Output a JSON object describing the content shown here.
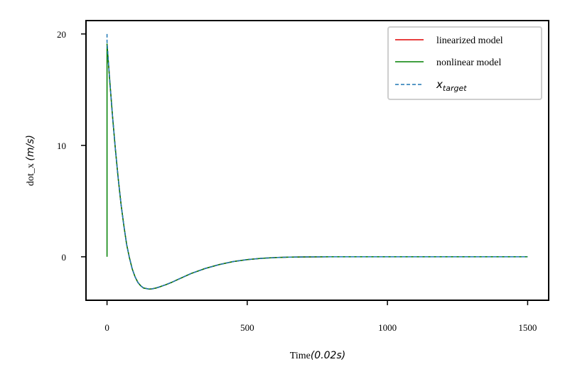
{
  "chart_data": {
    "type": "line",
    "xlabel": {
      "text": "Time",
      "unit": "(0.02s)"
    },
    "ylabel": {
      "text": "dot_x ",
      "unit": "(m/s)"
    },
    "xlim": [
      -75,
      1575
    ],
    "ylim": [
      -3.9,
      21.2
    ],
    "xticks": [
      0,
      500,
      1000,
      1500
    ],
    "yticks": [
      0,
      10,
      20
    ],
    "grid": false,
    "legend_position": "top-right",
    "series": [
      {
        "name": "linearized model",
        "color": "#e00000",
        "style": "solid",
        "x": [
          0,
          10,
          20,
          30,
          40,
          50,
          60,
          70,
          80,
          90,
          100,
          110,
          120,
          130,
          140,
          150,
          160,
          175,
          190,
          210,
          230,
          260,
          300,
          350,
          400,
          450,
          500,
          550,
          600,
          650,
          700,
          800,
          900,
          1000,
          1200,
          1500
        ],
        "y": [
          19.1,
          15.7,
          12.5,
          9.6,
          7.0,
          4.7,
          2.8,
          1.1,
          -0.1,
          -1.1,
          -1.8,
          -2.3,
          -2.6,
          -2.8,
          -2.85,
          -2.9,
          -2.88,
          -2.8,
          -2.68,
          -2.5,
          -2.3,
          -1.95,
          -1.5,
          -1.05,
          -0.7,
          -0.43,
          -0.25,
          -0.14,
          -0.07,
          -0.03,
          -0.01,
          0.0,
          0.0,
          0.0,
          0.0,
          0.0
        ]
      },
      {
        "name": "nonlinear model",
        "color": "#008000",
        "style": "solid",
        "x": [
          0,
          0,
          10,
          20,
          30,
          40,
          50,
          60,
          70,
          80,
          90,
          100,
          110,
          120,
          130,
          140,
          150,
          160,
          175,
          190,
          210,
          230,
          260,
          300,
          350,
          400,
          450,
          500,
          550,
          600,
          650,
          700,
          800,
          900,
          1000,
          1200,
          1500
        ],
        "y": [
          0.0,
          19.1,
          15.7,
          12.5,
          9.6,
          7.0,
          4.7,
          2.8,
          1.1,
          -0.1,
          -1.1,
          -1.8,
          -2.3,
          -2.6,
          -2.8,
          -2.85,
          -2.9,
          -2.88,
          -2.8,
          -2.68,
          -2.5,
          -2.3,
          -1.95,
          -1.5,
          -1.05,
          -0.7,
          -0.43,
          -0.25,
          -0.14,
          -0.07,
          -0.03,
          -0.01,
          0.0,
          0.0,
          0.0,
          0.0,
          0.0
        ]
      },
      {
        "name": "x",
        "name_subscript": "target",
        "color": "#1f77b4",
        "style": "dashed",
        "x": [
          0,
          0,
          10,
          20,
          30,
          40,
          50,
          60,
          70,
          80,
          90,
          100,
          110,
          120,
          130,
          140,
          150,
          160,
          175,
          190,
          210,
          230,
          260,
          300,
          350,
          400,
          450,
          500,
          550,
          600,
          650,
          700,
          800,
          900,
          1000,
          1200,
          1500
        ],
        "y": [
          20.0,
          19.3,
          15.7,
          12.5,
          9.6,
          7.0,
          4.7,
          2.8,
          1.1,
          -0.1,
          -1.1,
          -1.8,
          -2.3,
          -2.6,
          -2.8,
          -2.85,
          -2.9,
          -2.88,
          -2.8,
          -2.68,
          -2.5,
          -2.3,
          -1.95,
          -1.5,
          -1.05,
          -0.7,
          -0.43,
          -0.25,
          -0.14,
          -0.07,
          -0.03,
          -0.01,
          0.0,
          0.0,
          0.0,
          0.0,
          0.0
        ]
      }
    ]
  }
}
